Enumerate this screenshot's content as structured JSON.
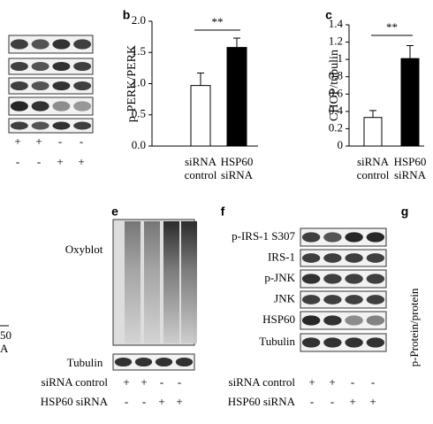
{
  "chart_data": [
    {
      "type": "bar",
      "panel": "b",
      "ylabel": "p-PERK/PERK",
      "annotation": "**",
      "categories": [
        "siRNA control",
        "HSP60 siRNA"
      ],
      "values": [
        0.97,
        1.58
      ],
      "errors": [
        0.2,
        0.15
      ],
      "colors": [
        "#ffffff",
        "#000000"
      ],
      "ylim": [
        0,
        2
      ],
      "yticks": [
        {
          "value": 0,
          "label": "0.0"
        },
        {
          "value": 0.5,
          "label": "0.5"
        },
        {
          "value": 1,
          "label": "1.0"
        },
        {
          "value": 1.5,
          "label": "1.5"
        },
        {
          "value": 2,
          "label": "2.0"
        }
      ],
      "grid": false
    },
    {
      "type": "bar",
      "panel": "c",
      "ylabel": "CHOP/tubulin",
      "annotation": "**",
      "categories": [
        "siRNA control",
        "HSP60 siRNA"
      ],
      "values": [
        0.33,
        1.01
      ],
      "errors": [
        0.08,
        0.15
      ],
      "colors": [
        "#ffffff",
        "#000000"
      ],
      "ylim": [
        0,
        1.4
      ],
      "yticks": [
        0,
        0.2,
        0.4,
        0.6,
        0.8,
        1,
        1.2,
        1.4
      ],
      "grid": false
    }
  ],
  "left_fragment": {
    "rows": [
      [
        "+",
        "+",
        "-",
        "-"
      ],
      [
        "-",
        "-",
        "+",
        "+"
      ]
    ],
    "texts": [
      "50",
      "A"
    ]
  },
  "panel_e": {
    "letter": "e",
    "blots": [
      "Oxyblot",
      "Tubulin"
    ],
    "rows": [
      {
        "label": "siRNA control",
        "signs": [
          "+",
          "+",
          "-",
          "-"
        ]
      },
      {
        "label": "HSP60 siRNA",
        "signs": [
          "-",
          "-",
          "+",
          "+"
        ]
      }
    ]
  },
  "panel_f": {
    "letter": "f",
    "blots": [
      "p-IRS-1 S307",
      "IRS-1",
      "p-JNK",
      "JNK",
      "HSP60",
      "Tubulin"
    ],
    "rows": [
      {
        "label": "siRNA control",
        "signs": [
          "+",
          "+",
          "-",
          "-"
        ]
      },
      {
        "label": "HSP60 siRNA",
        "signs": [
          "-",
          "-",
          "+",
          "+"
        ]
      }
    ]
  },
  "panel_g": {
    "letter": "g",
    "ylabel": "p-Protein/protein"
  }
}
